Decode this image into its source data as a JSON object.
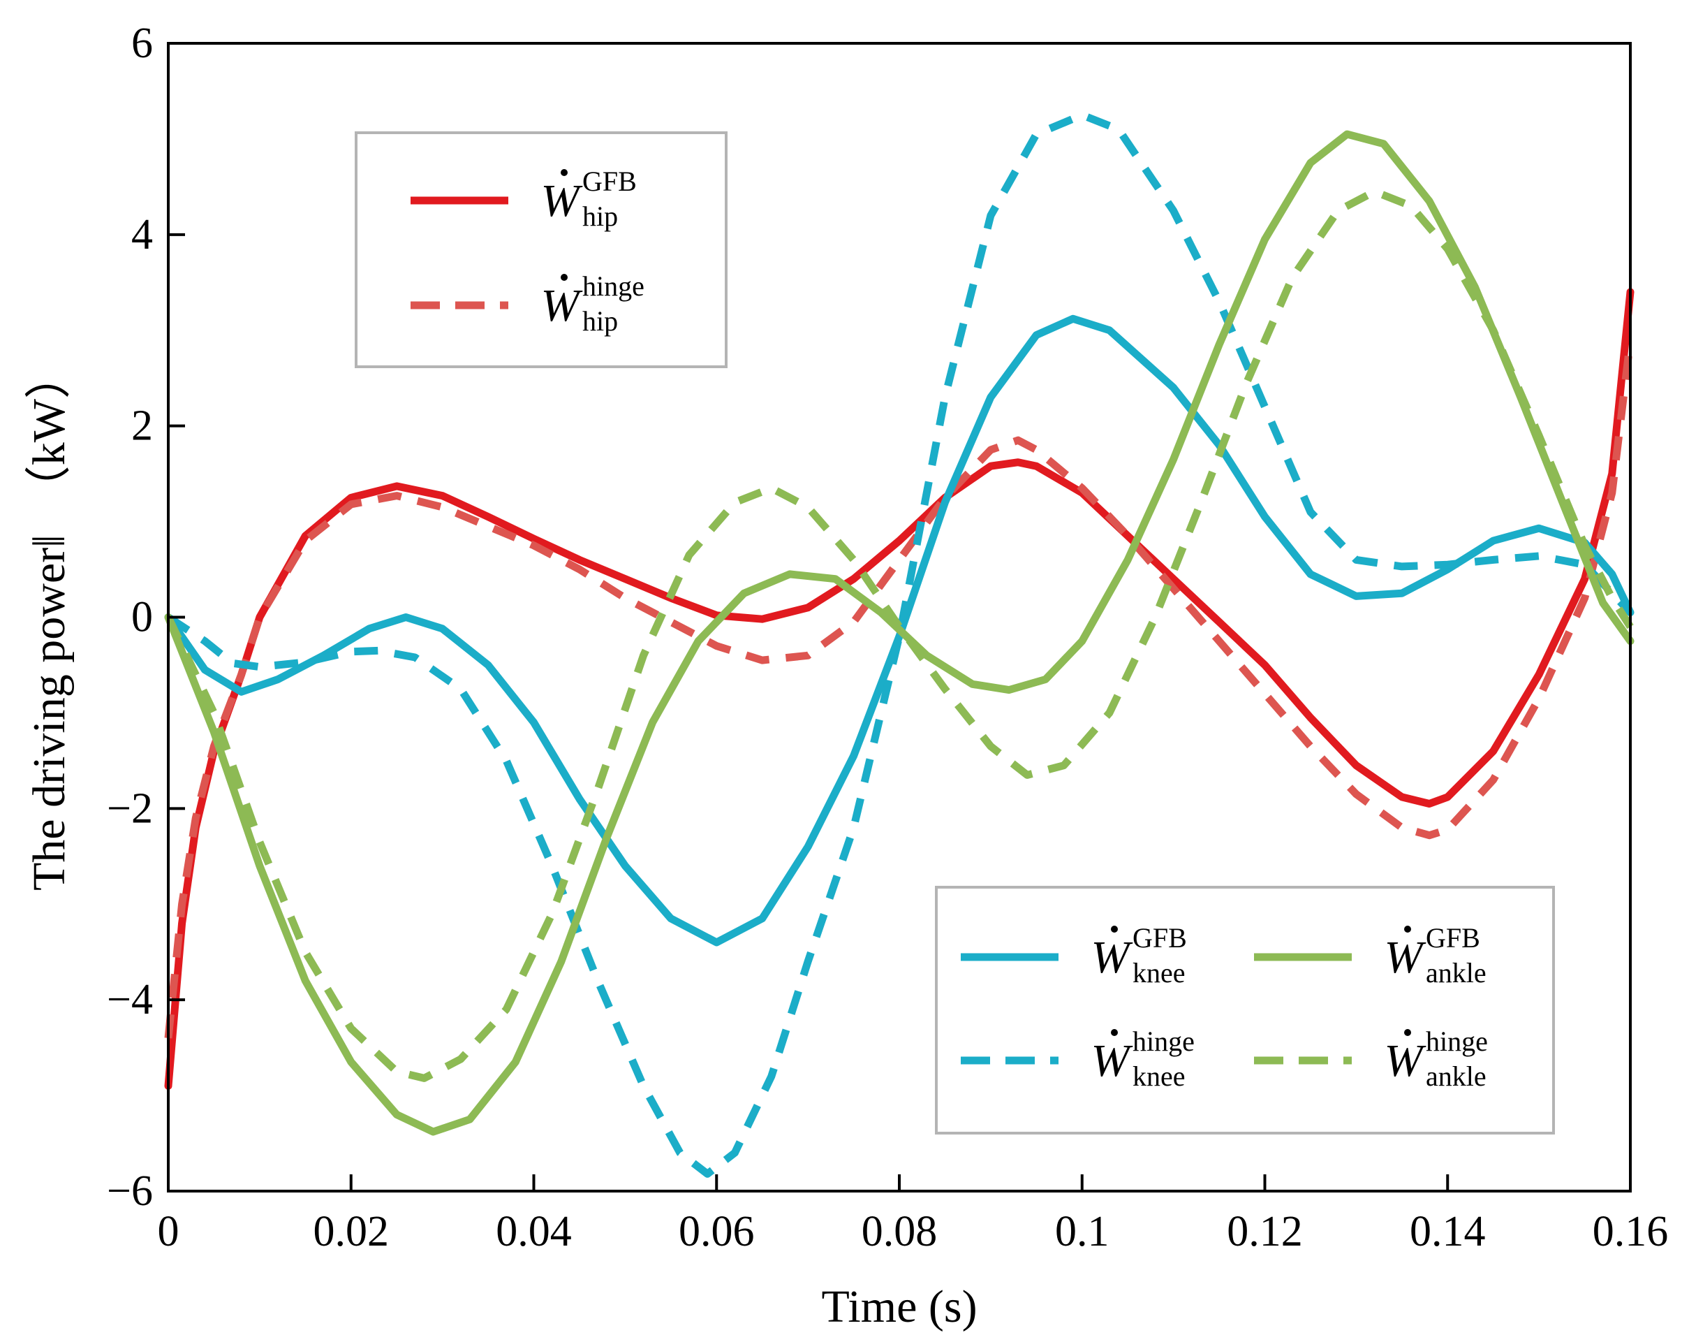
{
  "chart_data": {
    "type": "line",
    "xlabel": "Time (s)",
    "ylabel": "The driving power‖  （kW）",
    "xlim": [
      0,
      0.16
    ],
    "ylim": [
      -6,
      6
    ],
    "x_ticks": [
      "0",
      "0.02",
      "0.04",
      "0.06",
      "0.08",
      "0.1",
      "0.12",
      "0.14",
      "0.16"
    ],
    "y_ticks": [
      "6",
      "4",
      "2",
      "0",
      "−2",
      "−4",
      "−6"
    ],
    "legend_placement": [
      "upper-left",
      "lower-right"
    ],
    "series": [
      {
        "name": "W hip GFB",
        "symbol": "W",
        "sup": "GFB",
        "sub": "hip",
        "legend": 0,
        "color": "#e11a1f",
        "style": "solid",
        "points": [
          [
            0,
            -4.9
          ],
          [
            0.0015,
            -3.2
          ],
          [
            0.003,
            -2.2
          ],
          [
            0.005,
            -1.4
          ],
          [
            0.008,
            -0.6
          ],
          [
            0.01,
            0
          ],
          [
            0.015,
            0.85
          ],
          [
            0.02,
            1.25
          ],
          [
            0.025,
            1.37
          ],
          [
            0.03,
            1.27
          ],
          [
            0.035,
            1.05
          ],
          [
            0.04,
            0.82
          ],
          [
            0.045,
            0.6
          ],
          [
            0.05,
            0.4
          ],
          [
            0.055,
            0.2
          ],
          [
            0.06,
            0.02
          ],
          [
            0.065,
            -0.02
          ],
          [
            0.07,
            0.1
          ],
          [
            0.075,
            0.4
          ],
          [
            0.08,
            0.8
          ],
          [
            0.085,
            1.25
          ],
          [
            0.09,
            1.58
          ],
          [
            0.093,
            1.62
          ],
          [
            0.095,
            1.58
          ],
          [
            0.1,
            1.3
          ],
          [
            0.105,
            0.85
          ],
          [
            0.11,
            0.4
          ],
          [
            0.115,
            -0.05
          ],
          [
            0.12,
            -0.5
          ],
          [
            0.125,
            -1.05
          ],
          [
            0.13,
            -1.55
          ],
          [
            0.135,
            -1.88
          ],
          [
            0.138,
            -1.95
          ],
          [
            0.14,
            -1.88
          ],
          [
            0.145,
            -1.4
          ],
          [
            0.15,
            -0.6
          ],
          [
            0.155,
            0.4
          ],
          [
            0.158,
            1.5
          ],
          [
            0.16,
            3.4
          ]
        ]
      },
      {
        "name": "W hip hinge",
        "symbol": "W",
        "sup": "hinge",
        "sub": "hip",
        "legend": 0,
        "color": "#dd5550",
        "style": "dashed",
        "points": [
          [
            0,
            -4.4
          ],
          [
            0.0015,
            -3.0
          ],
          [
            0.003,
            -2.1
          ],
          [
            0.005,
            -1.35
          ],
          [
            0.008,
            -0.6
          ],
          [
            0.01,
            0
          ],
          [
            0.015,
            0.8
          ],
          [
            0.02,
            1.18
          ],
          [
            0.025,
            1.27
          ],
          [
            0.03,
            1.15
          ],
          [
            0.035,
            0.95
          ],
          [
            0.04,
            0.75
          ],
          [
            0.045,
            0.5
          ],
          [
            0.05,
            0.2
          ],
          [
            0.055,
            -0.05
          ],
          [
            0.06,
            -0.3
          ],
          [
            0.065,
            -0.45
          ],
          [
            0.07,
            -0.4
          ],
          [
            0.075,
            -0.05
          ],
          [
            0.08,
            0.6
          ],
          [
            0.085,
            1.25
          ],
          [
            0.09,
            1.75
          ],
          [
            0.093,
            1.85
          ],
          [
            0.095,
            1.75
          ],
          [
            0.1,
            1.35
          ],
          [
            0.105,
            0.85
          ],
          [
            0.11,
            0.3
          ],
          [
            0.115,
            -0.25
          ],
          [
            0.12,
            -0.8
          ],
          [
            0.125,
            -1.35
          ],
          [
            0.13,
            -1.85
          ],
          [
            0.135,
            -2.2
          ],
          [
            0.138,
            -2.28
          ],
          [
            0.14,
            -2.22
          ],
          [
            0.145,
            -1.7
          ],
          [
            0.15,
            -0.85
          ],
          [
            0.155,
            0.2
          ],
          [
            0.158,
            1.3
          ],
          [
            0.16,
            2.9
          ]
        ]
      },
      {
        "name": "W knee GFB",
        "symbol": "W",
        "sup": "GFB",
        "sub": "knee",
        "legend": 1,
        "color": "#1badc8",
        "style": "solid",
        "points": [
          [
            0,
            0
          ],
          [
            0.004,
            -0.55
          ],
          [
            0.008,
            -0.78
          ],
          [
            0.012,
            -0.65
          ],
          [
            0.017,
            -0.4
          ],
          [
            0.022,
            -0.12
          ],
          [
            0.026,
            0
          ],
          [
            0.03,
            -0.12
          ],
          [
            0.035,
            -0.5
          ],
          [
            0.04,
            -1.1
          ],
          [
            0.045,
            -1.9
          ],
          [
            0.05,
            -2.6
          ],
          [
            0.055,
            -3.15
          ],
          [
            0.06,
            -3.4
          ],
          [
            0.065,
            -3.15
          ],
          [
            0.07,
            -2.4
          ],
          [
            0.075,
            -1.45
          ],
          [
            0.08,
            -0.2
          ],
          [
            0.085,
            1.2
          ],
          [
            0.09,
            2.3
          ],
          [
            0.095,
            2.95
          ],
          [
            0.099,
            3.12
          ],
          [
            0.103,
            3.0
          ],
          [
            0.11,
            2.4
          ],
          [
            0.115,
            1.8
          ],
          [
            0.12,
            1.05
          ],
          [
            0.125,
            0.45
          ],
          [
            0.13,
            0.22
          ],
          [
            0.135,
            0.25
          ],
          [
            0.14,
            0.5
          ],
          [
            0.145,
            0.8
          ],
          [
            0.15,
            0.93
          ],
          [
            0.155,
            0.78
          ],
          [
            0.158,
            0.45
          ],
          [
            0.16,
            0.05
          ]
        ]
      },
      {
        "name": "W knee hinge",
        "symbol": "W",
        "sup": "hinge",
        "sub": "knee",
        "legend": 1,
        "color": "#1badc8",
        "style": "dashed",
        "points": [
          [
            0,
            0
          ],
          [
            0.004,
            -0.25
          ],
          [
            0.007,
            -0.48
          ],
          [
            0.01,
            -0.52
          ],
          [
            0.015,
            -0.47
          ],
          [
            0.02,
            -0.36
          ],
          [
            0.023,
            -0.35
          ],
          [
            0.027,
            -0.42
          ],
          [
            0.032,
            -0.75
          ],
          [
            0.037,
            -1.5
          ],
          [
            0.042,
            -2.6
          ],
          [
            0.047,
            -3.8
          ],
          [
            0.052,
            -4.9
          ],
          [
            0.056,
            -5.6
          ],
          [
            0.059,
            -5.82
          ],
          [
            0.062,
            -5.6
          ],
          [
            0.066,
            -4.8
          ],
          [
            0.07,
            -3.6
          ],
          [
            0.075,
            -2.2
          ],
          [
            0.08,
            -0.2
          ],
          [
            0.085,
            2.3
          ],
          [
            0.09,
            4.2
          ],
          [
            0.095,
            5.05
          ],
          [
            0.1,
            5.25
          ],
          [
            0.104,
            5.1
          ],
          [
            0.11,
            4.25
          ],
          [
            0.115,
            3.3
          ],
          [
            0.12,
            2.2
          ],
          [
            0.125,
            1.1
          ],
          [
            0.13,
            0.6
          ],
          [
            0.135,
            0.53
          ],
          [
            0.14,
            0.55
          ],
          [
            0.145,
            0.6
          ],
          [
            0.15,
            0.64
          ],
          [
            0.155,
            0.55
          ],
          [
            0.16,
            0.05
          ]
        ]
      },
      {
        "name": "W ankle GFB",
        "symbol": "W",
        "sup": "GFB",
        "sub": "ankle",
        "legend": 1,
        "color": "#8dba54",
        "style": "solid",
        "points": [
          [
            0,
            0
          ],
          [
            0.005,
            -1.2
          ],
          [
            0.01,
            -2.6
          ],
          [
            0.015,
            -3.8
          ],
          [
            0.02,
            -4.65
          ],
          [
            0.025,
            -5.2
          ],
          [
            0.029,
            -5.38
          ],
          [
            0.033,
            -5.25
          ],
          [
            0.038,
            -4.65
          ],
          [
            0.043,
            -3.6
          ],
          [
            0.048,
            -2.3
          ],
          [
            0.053,
            -1.1
          ],
          [
            0.058,
            -0.25
          ],
          [
            0.063,
            0.25
          ],
          [
            0.068,
            0.45
          ],
          [
            0.073,
            0.4
          ],
          [
            0.078,
            0.05
          ],
          [
            0.083,
            -0.4
          ],
          [
            0.088,
            -0.7
          ],
          [
            0.092,
            -0.76
          ],
          [
            0.096,
            -0.65
          ],
          [
            0.1,
            -0.25
          ],
          [
            0.105,
            0.6
          ],
          [
            0.11,
            1.65
          ],
          [
            0.115,
            2.85
          ],
          [
            0.12,
            3.95
          ],
          [
            0.125,
            4.75
          ],
          [
            0.129,
            5.05
          ],
          [
            0.133,
            4.95
          ],
          [
            0.138,
            4.35
          ],
          [
            0.143,
            3.45
          ],
          [
            0.148,
            2.3
          ],
          [
            0.153,
            1.1
          ],
          [
            0.157,
            0.15
          ],
          [
            0.16,
            -0.25
          ]
        ]
      },
      {
        "name": "W ankle hinge",
        "symbol": "W",
        "sup": "hinge",
        "sub": "ankle",
        "legend": 1,
        "color": "#8dba54",
        "style": "dashed",
        "points": [
          [
            0,
            0
          ],
          [
            0.005,
            -1.0
          ],
          [
            0.01,
            -2.35
          ],
          [
            0.015,
            -3.5
          ],
          [
            0.02,
            -4.3
          ],
          [
            0.025,
            -4.75
          ],
          [
            0.028,
            -4.82
          ],
          [
            0.032,
            -4.62
          ],
          [
            0.037,
            -4.1
          ],
          [
            0.042,
            -3.1
          ],
          [
            0.047,
            -1.8
          ],
          [
            0.052,
            -0.4
          ],
          [
            0.057,
            0.65
          ],
          [
            0.062,
            1.2
          ],
          [
            0.066,
            1.35
          ],
          [
            0.07,
            1.15
          ],
          [
            0.075,
            0.6
          ],
          [
            0.08,
            -0.1
          ],
          [
            0.085,
            -0.75
          ],
          [
            0.09,
            -1.35
          ],
          [
            0.094,
            -1.65
          ],
          [
            0.098,
            -1.55
          ],
          [
            0.103,
            -1.0
          ],
          [
            0.108,
            0
          ],
          [
            0.113,
            1.2
          ],
          [
            0.118,
            2.45
          ],
          [
            0.123,
            3.55
          ],
          [
            0.128,
            4.25
          ],
          [
            0.132,
            4.45
          ],
          [
            0.136,
            4.3
          ],
          [
            0.14,
            3.85
          ],
          [
            0.145,
            3.0
          ],
          [
            0.15,
            1.9
          ],
          [
            0.155,
            0.75
          ],
          [
            0.158,
            0.2
          ],
          [
            0.16,
            -0.1
          ]
        ]
      }
    ]
  }
}
